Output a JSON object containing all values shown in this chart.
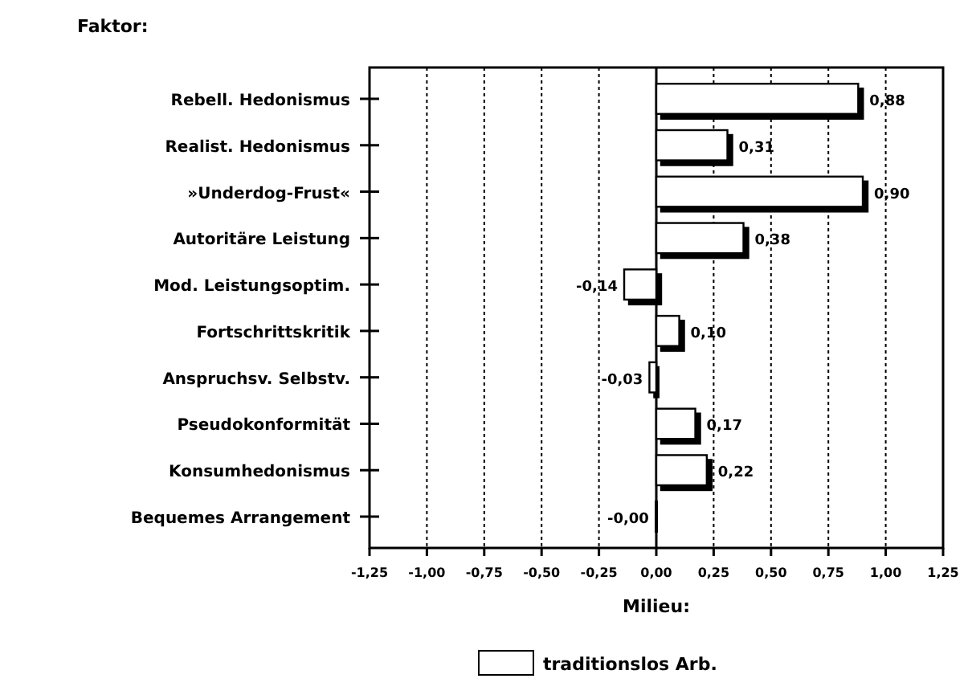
{
  "chart_data": {
    "type": "bar",
    "orientation": "horizontal",
    "ylabel": "Faktor:",
    "xlabel": "Milieu:",
    "categories": [
      "Rebell. Hedonismus",
      "Realist. Hedonismus",
      "»Underdog-Frust«",
      "Autoritäre Leistung",
      "Mod. Leistungsoptim.",
      "Fortschrittskritik",
      "Anspruchsv. Selbstv.",
      "Pseudokonformität",
      "Konsumhedonismus",
      "Bequemes Arrangement"
    ],
    "series": [
      {
        "name": "traditionslos Arb.",
        "color": "#ffffff",
        "values": [
          0.88,
          0.31,
          0.9,
          0.38,
          -0.14,
          0.1,
          -0.03,
          0.17,
          0.22,
          -0.004
        ],
        "value_labels": [
          "0,88",
          "0,31",
          "0,90",
          "0,38",
          "-0,14",
          "0,10",
          "-0,03",
          "0,17",
          "0,22",
          "-0,00"
        ]
      }
    ],
    "xlim": [
      -1.25,
      1.25
    ],
    "xticks": [
      {
        "value": -1.25,
        "label": "-1,25"
      },
      {
        "value": -1,
        "label": "-1,00"
      },
      {
        "value": -0.75,
        "label": "-0,75"
      },
      {
        "value": -0.5,
        "label": "-0,50"
      },
      {
        "value": -0.25,
        "label": "-0,25"
      },
      {
        "value": 0,
        "label": "0,00"
      },
      {
        "value": 0.25,
        "label": "0,25"
      },
      {
        "value": 0.5,
        "label": "0,50"
      },
      {
        "value": 0.75,
        "label": "0,75"
      },
      {
        "value": 1,
        "label": "1,00"
      },
      {
        "value": 1.25,
        "label": "1,25"
      }
    ],
    "grid": "x",
    "legend": "bottom"
  }
}
